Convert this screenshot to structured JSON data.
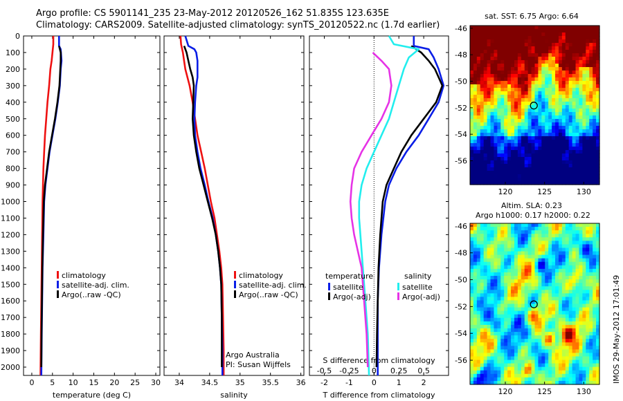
{
  "header": {
    "line1": "Argo profile: CS 5901141_235 23-May-2012 20120526_162 51.835S 123.635E",
    "line2": "Climatology: CARS2009. Satellite-adjusted climatology: synTS_20120522.nc (1.7d earlier)"
  },
  "stamp": "IMOS 29-May-2012 17:01:49",
  "colors": {
    "red": "#ee1111",
    "blue": "#0a1ee6",
    "black": "#000000",
    "cyan": "#22eeee",
    "magenta": "#e633e6"
  },
  "chart_data": [
    {
      "type": "line",
      "panel": "temperature",
      "xlabel": "temperature (deg C)",
      "ylabel": "",
      "xlim": [
        -2,
        31
      ],
      "ylim": [
        2050,
        0
      ],
      "xticks": [
        0,
        5,
        10,
        15,
        20,
        25,
        30
      ],
      "yticks": [
        0,
        100,
        200,
        300,
        400,
        500,
        600,
        700,
        800,
        900,
        1000,
        1100,
        1200,
        1300,
        1400,
        1500,
        1600,
        1700,
        1800,
        1900,
        2000
      ],
      "legend": {
        "placement": "lower-middle",
        "entries": [
          "climatology",
          "satellite-adj. clim.",
          "Argo(..raw -QC)"
        ]
      },
      "series": [
        {
          "name": "climatology",
          "color": "red",
          "points": [
            [
              5.2,
              0
            ],
            [
              5.2,
              50
            ],
            [
              5.0,
              100
            ],
            [
              4.8,
              150
            ],
            [
              4.5,
              200
            ],
            [
              4.2,
              300
            ],
            [
              3.8,
              400
            ],
            [
              3.5,
              500
            ],
            [
              3.2,
              600
            ],
            [
              3.0,
              700
            ],
            [
              2.8,
              800
            ],
            [
              2.7,
              900
            ],
            [
              2.6,
              1000
            ],
            [
              2.5,
              1200
            ],
            [
              2.4,
              1400
            ],
            [
              2.3,
              1600
            ],
            [
              2.2,
              1800
            ],
            [
              2.1,
              2050
            ]
          ]
        },
        {
          "name": "satellite-adj. clim.",
          "color": "blue",
          "points": [
            [
              6.6,
              0
            ],
            [
              6.6,
              60
            ],
            [
              7.0,
              80
            ],
            [
              7.2,
              150
            ],
            [
              7.0,
              200
            ],
            [
              6.8,
              300
            ],
            [
              6.3,
              400
            ],
            [
              5.7,
              500
            ],
            [
              5.0,
              600
            ],
            [
              4.3,
              700
            ],
            [
              3.8,
              800
            ],
            [
              3.3,
              900
            ],
            [
              3.0,
              1000
            ],
            [
              2.8,
              1200
            ],
            [
              2.6,
              1400
            ],
            [
              2.5,
              1600
            ],
            [
              2.4,
              1800
            ],
            [
              2.3,
              2050
            ]
          ]
        },
        {
          "name": "Argo(..raw -QC)",
          "color": "black",
          "points": [
            [
              6.6,
              60
            ],
            [
              7.0,
              100
            ],
            [
              7.0,
              150
            ],
            [
              6.9,
              200
            ],
            [
              6.7,
              300
            ],
            [
              6.2,
              400
            ],
            [
              5.6,
              500
            ],
            [
              4.9,
              600
            ],
            [
              4.2,
              700
            ],
            [
              3.7,
              800
            ],
            [
              3.2,
              900
            ],
            [
              2.9,
              1000
            ],
            [
              2.7,
              1200
            ],
            [
              2.55,
              1400
            ],
            [
              2.45,
              1600
            ],
            [
              2.35,
              1800
            ],
            [
              2.3,
              2000
            ]
          ]
        }
      ]
    },
    {
      "type": "line",
      "panel": "salinity",
      "xlabel": "salinity",
      "ylabel": "",
      "xlim": [
        33.75,
        36.05
      ],
      "ylim": [
        2050,
        0
      ],
      "xticks": [
        34,
        34.5,
        35,
        35.5,
        36
      ],
      "legend": {
        "placement": "lower-middle",
        "entries": [
          "climatology",
          "satellite-adj. clim.",
          "Argo(..raw -QC)"
        ]
      },
      "annotations": [
        "Argo Australia",
        "PI: Susan Wijffels"
      ],
      "series": [
        {
          "name": "climatology",
          "color": "red",
          "points": [
            [
              34.02,
              0
            ],
            [
              34.03,
              50
            ],
            [
              34.06,
              100
            ],
            [
              34.1,
              200
            ],
            [
              34.17,
              300
            ],
            [
              34.22,
              400
            ],
            [
              34.26,
              500
            ],
            [
              34.3,
              600
            ],
            [
              34.36,
              700
            ],
            [
              34.42,
              800
            ],
            [
              34.47,
              900
            ],
            [
              34.52,
              1000
            ],
            [
              34.58,
              1100
            ],
            [
              34.62,
              1200
            ],
            [
              34.66,
              1300
            ],
            [
              34.69,
              1400
            ],
            [
              34.71,
              1500
            ],
            [
              34.72,
              1700
            ],
            [
              34.73,
              1900
            ],
            [
              34.73,
              2050
            ]
          ]
        },
        {
          "name": "satellite-adj. clim.",
          "color": "blue",
          "points": [
            [
              34.1,
              0
            ],
            [
              34.15,
              60
            ],
            [
              34.25,
              80
            ],
            [
              34.28,
              100
            ],
            [
              34.3,
              150
            ],
            [
              34.3,
              250
            ],
            [
              34.28,
              300
            ],
            [
              34.26,
              400
            ],
            [
              34.25,
              500
            ],
            [
              34.26,
              600
            ],
            [
              34.3,
              700
            ],
            [
              34.35,
              800
            ],
            [
              34.42,
              900
            ],
            [
              34.48,
              1000
            ],
            [
              34.55,
              1100
            ],
            [
              34.6,
              1200
            ],
            [
              34.64,
              1300
            ],
            [
              34.67,
              1400
            ],
            [
              34.69,
              1500
            ],
            [
              34.7,
              1700
            ],
            [
              34.71,
              1900
            ],
            [
              34.71,
              2050
            ]
          ]
        },
        {
          "name": "Argo(..raw -QC)",
          "color": "black",
          "points": [
            [
              34.08,
              60
            ],
            [
              34.12,
              100
            ],
            [
              34.15,
              150
            ],
            [
              34.18,
              200
            ],
            [
              34.22,
              250
            ],
            [
              34.24,
              300
            ],
            [
              34.23,
              400
            ],
            [
              34.22,
              500
            ],
            [
              34.24,
              600
            ],
            [
              34.28,
              700
            ],
            [
              34.33,
              800
            ],
            [
              34.4,
              900
            ],
            [
              34.47,
              1000
            ],
            [
              34.54,
              1100
            ],
            [
              34.6,
              1200
            ],
            [
              34.64,
              1300
            ],
            [
              34.67,
              1400
            ],
            [
              34.69,
              1500
            ],
            [
              34.7,
              1700
            ],
            [
              34.7,
              1900
            ],
            [
              34.7,
              2000
            ]
          ]
        }
      ]
    },
    {
      "type": "line",
      "panel": "difference",
      "xlabel": "T difference from climatology",
      "xlabel_top": "S difference from climatology",
      "ylabel": "",
      "xlim": [
        -2.6,
        3.0
      ],
      "ylim": [
        2050,
        0
      ],
      "xticks": [
        -2,
        -1,
        0,
        1,
        2
      ],
      "xticks_s": [
        "-0.5",
        "-0.25",
        "0",
        "0.25",
        "0.5"
      ],
      "xticks_s_pos": [
        -2,
        -1,
        0,
        1,
        2
      ],
      "legend": {
        "placement": "lower",
        "groups": [
          {
            "title": "temperature",
            "entries": [
              "satellite",
              "Argo(-adj)"
            ]
          },
          {
            "title": "salinity",
            "entries": [
              "satellite",
              "Argo(-adj)"
            ]
          }
        ]
      },
      "series": [
        {
          "name": "temperature satellite",
          "color": "blue",
          "points": [
            [
              1.6,
              0
            ],
            [
              1.6,
              60
            ],
            [
              2.2,
              80
            ],
            [
              2.4,
              130
            ],
            [
              2.6,
              200
            ],
            [
              2.8,
              300
            ],
            [
              2.6,
              400
            ],
            [
              2.2,
              500
            ],
            [
              1.8,
              600
            ],
            [
              1.3,
              700
            ],
            [
              0.9,
              800
            ],
            [
              0.6,
              900
            ],
            [
              0.45,
              1000
            ],
            [
              0.3,
              1200
            ],
            [
              0.2,
              1400
            ],
            [
              0.15,
              1600
            ],
            [
              0.15,
              1800
            ],
            [
              0.15,
              2050
            ]
          ]
        },
        {
          "name": "temperature Argo(-adj)",
          "color": "black",
          "points": [
            [
              1.5,
              60
            ],
            [
              1.9,
              100
            ],
            [
              2.2,
              150
            ],
            [
              2.45,
              200
            ],
            [
              2.75,
              300
            ],
            [
              2.5,
              400
            ],
            [
              2.0,
              500
            ],
            [
              1.5,
              600
            ],
            [
              1.1,
              700
            ],
            [
              0.8,
              800
            ],
            [
              0.5,
              900
            ],
            [
              0.35,
              1000
            ],
            [
              0.25,
              1200
            ],
            [
              0.18,
              1400
            ],
            [
              0.15,
              1600
            ],
            [
              0.12,
              1800
            ],
            [
              0.1,
              2000
            ]
          ]
        },
        {
          "name": "salinity satellite",
          "color": "cyan",
          "points": [
            [
              0.6,
              0
            ],
            [
              0.8,
              50
            ],
            [
              1.8,
              80
            ],
            [
              1.4,
              130
            ],
            [
              1.2,
              200
            ],
            [
              1.0,
              300
            ],
            [
              0.8,
              400
            ],
            [
              0.6,
              500
            ],
            [
              0.3,
              600
            ],
            [
              0.0,
              700
            ],
            [
              -0.3,
              800
            ],
            [
              -0.5,
              900
            ],
            [
              -0.6,
              1000
            ],
            [
              -0.6,
              1100
            ],
            [
              -0.55,
              1200
            ],
            [
              -0.45,
              1400
            ],
            [
              -0.35,
              1600
            ],
            [
              -0.25,
              1800
            ],
            [
              -0.2,
              2050
            ]
          ]
        },
        {
          "name": "salinity Argo(-adj)",
          "color": "magenta",
          "points": [
            [
              -0.05,
              100
            ],
            [
              0.3,
              150
            ],
            [
              0.6,
              200
            ],
            [
              0.7,
              300
            ],
            [
              0.6,
              400
            ],
            [
              0.3,
              500
            ],
            [
              -0.1,
              600
            ],
            [
              -0.5,
              700
            ],
            [
              -0.8,
              800
            ],
            [
              -0.9,
              900
            ],
            [
              -0.95,
              1000
            ],
            [
              -0.9,
              1100
            ],
            [
              -0.8,
              1200
            ],
            [
              -0.65,
              1300
            ],
            [
              -0.5,
              1400
            ],
            [
              -0.4,
              1600
            ],
            [
              -0.3,
              1800
            ],
            [
              -0.25,
              2000
            ]
          ]
        }
      ]
    },
    {
      "type": "heatmap",
      "panel": "sst-map",
      "title": "sat. SST: 6.75  Argo: 6.64",
      "xlim": [
        115.5,
        132
      ],
      "ylim": [
        -57.8,
        -45.8
      ],
      "xticks": [
        120,
        125,
        130
      ],
      "yticks": [
        -46,
        -48,
        -50,
        -52,
        -54,
        -56
      ],
      "marker": {
        "lon": 123.635,
        "lat": -51.835
      }
    },
    {
      "type": "heatmap",
      "panel": "sla-map",
      "title": "Altim. SLA: 0.23",
      "subtitle": "Argo h1000: 0.17  h2000: 0.22",
      "xlim": [
        115.5,
        132
      ],
      "ylim": [
        -57.8,
        -45.8
      ],
      "xticks": [
        120,
        125,
        130
      ],
      "yticks": [
        -46,
        -48,
        -50,
        -52,
        -54,
        -56
      ],
      "marker": {
        "lon": 123.635,
        "lat": -51.835
      }
    }
  ]
}
